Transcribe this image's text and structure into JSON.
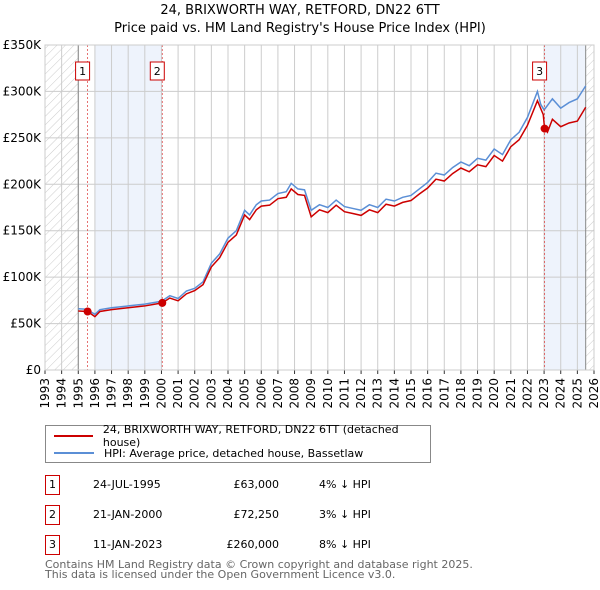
{
  "chart_data": {
    "type": "line",
    "title": "24, BRIXWORTH WAY, RETFORD, DN22 6TT",
    "subtitle": "Price paid vs. HM Land Registry's House Price Index (HPI)",
    "ylim": [
      0,
      350000
    ],
    "xlim": [
      1993,
      2026
    ],
    "y_ticks": [
      {
        "v": 0,
        "label": "£0"
      },
      {
        "v": 50000,
        "label": "£50K"
      },
      {
        "v": 100000,
        "label": "£100K"
      },
      {
        "v": 150000,
        "label": "£150K"
      },
      {
        "v": 200000,
        "label": "£200K"
      },
      {
        "v": 250000,
        "label": "£250K"
      },
      {
        "v": 300000,
        "label": "£300K"
      },
      {
        "v": 350000,
        "label": "£350K"
      }
    ],
    "x_ticks": [
      "1993",
      "1994",
      "1995",
      "1996",
      "1997",
      "1998",
      "1999",
      "2000",
      "2001",
      "2002",
      "2003",
      "2004",
      "2005",
      "2006",
      "2007",
      "2008",
      "2009",
      "2010",
      "2011",
      "2012",
      "2013",
      "2014",
      "2015",
      "2016",
      "2017",
      "2018",
      "2019",
      "2020",
      "2021",
      "2022",
      "2023",
      "2024",
      "2025",
      "2026"
    ],
    "grid": true,
    "hatched_before": 1995.0,
    "hatched_after": 2025.5,
    "shaded_ranges": [
      [
        1996.0,
        2000.05
      ],
      [
        2023.03,
        2025.5
      ]
    ],
    "series": [
      {
        "name": "24, BRIXWORTH WAY, RETFORD, DN22 6TT (detached house)",
        "color": "#cc0000",
        "x": [
          1995.0,
          1995.56,
          1996.0,
          1996.3,
          1997,
          1998,
          1999,
          2000.05,
          2000.5,
          2001,
          2001.5,
          2002,
          2002.5,
          2003,
          2003.5,
          2004,
          2004.5,
          2005,
          2005.3,
          2005.7,
          2006,
          2006.5,
          2007,
          2007.5,
          2007.8,
          2008.2,
          2008.6,
          2009,
          2009.5,
          2010,
          2010.5,
          2011,
          2011.5,
          2012,
          2012.5,
          2013,
          2013.5,
          2014,
          2014.5,
          2015,
          2015.5,
          2016,
          2016.5,
          2017,
          2017.5,
          2018,
          2018.5,
          2019,
          2019.5,
          2020,
          2020.5,
          2021,
          2021.5,
          2022,
          2022.6,
          2022.95,
          2023.03,
          2023.2,
          2023.5,
          2024,
          2024.5,
          2025,
          2025.5
        ],
        "y": [
          63500,
          63000,
          57500,
          63000,
          65000,
          67000,
          69000,
          72250,
          77500,
          74500,
          82000,
          85500,
          92000,
          111000,
          121000,
          137500,
          145500,
          167000,
          162000,
          172500,
          176500,
          177500,
          184500,
          186000,
          195000,
          189000,
          188000,
          165000,
          172500,
          169500,
          177500,
          170500,
          168500,
          166500,
          172500,
          169500,
          178500,
          176500,
          180500,
          182500,
          189500,
          196000,
          205500,
          203500,
          211500,
          217500,
          213500,
          221000,
          219000,
          231000,
          225000,
          240500,
          248000,
          263500,
          290000,
          275000,
          260000,
          256000,
          270000,
          262000,
          266000,
          268000,
          283000
        ]
      },
      {
        "name": "HPI: Average price, detached house, Bassetlaw",
        "color": "#5b8fd6",
        "x": [
          1995.0,
          1995.5,
          1996.0,
          1996.3,
          1997,
          1998,
          1999,
          2000,
          2000.5,
          2001,
          2001.5,
          2002,
          2002.5,
          2003,
          2003.5,
          2004,
          2004.5,
          2005,
          2005.3,
          2005.7,
          2006,
          2006.5,
          2007,
          2007.5,
          2007.8,
          2008.2,
          2008.6,
          2009,
          2009.5,
          2010,
          2010.5,
          2011,
          2011.5,
          2012,
          2012.5,
          2013,
          2013.5,
          2014,
          2014.5,
          2015,
          2015.5,
          2016,
          2016.5,
          2017,
          2017.5,
          2018,
          2018.5,
          2019,
          2019.5,
          2020,
          2020.5,
          2021,
          2021.5,
          2022,
          2022.6,
          2022.8,
          2023,
          2023.5,
          2024,
          2024.5,
          2025,
          2025.5
        ],
        "y": [
          66000,
          65500,
          60000,
          65000,
          67000,
          69000,
          71000,
          74000,
          80000,
          77000,
          85000,
          88000,
          95000,
          115000,
          125000,
          142000,
          150000,
          172000,
          167000,
          178000,
          182000,
          183000,
          190000,
          192000,
          201000,
          195000,
          194000,
          172000,
          178000,
          175000,
          183000,
          176000,
          174000,
          172000,
          178000,
          175000,
          184000,
          182000,
          186000,
          188000,
          195000,
          202000,
          212000,
          210000,
          218000,
          224000,
          220000,
          228000,
          226000,
          238000,
          232000,
          248000,
          256000,
          272000,
          300000,
          286000,
          280000,
          292000,
          282000,
          288000,
          292000,
          306000
        ]
      }
    ],
    "sales": [
      {
        "num": "1",
        "x": 1995.56,
        "y": 63000,
        "date": "24-JUL-1995",
        "price": "£63,000",
        "hpi": "4% ↓ HPI"
      },
      {
        "num": "2",
        "x": 2000.05,
        "y": 72250,
        "date": "21-JAN-2000",
        "price": "£72,250",
        "hpi": "3% ↓ HPI"
      },
      {
        "num": "3",
        "x": 2023.03,
        "y": 260000,
        "date": "11-JAN-2023",
        "price": "£260,000",
        "hpi": "8% ↓ HPI"
      }
    ]
  },
  "footer": {
    "line1": "Contains HM Land Registry data © Crown copyright and database right 2025.",
    "line2": "This data is licensed under the Open Government Licence v3.0."
  }
}
